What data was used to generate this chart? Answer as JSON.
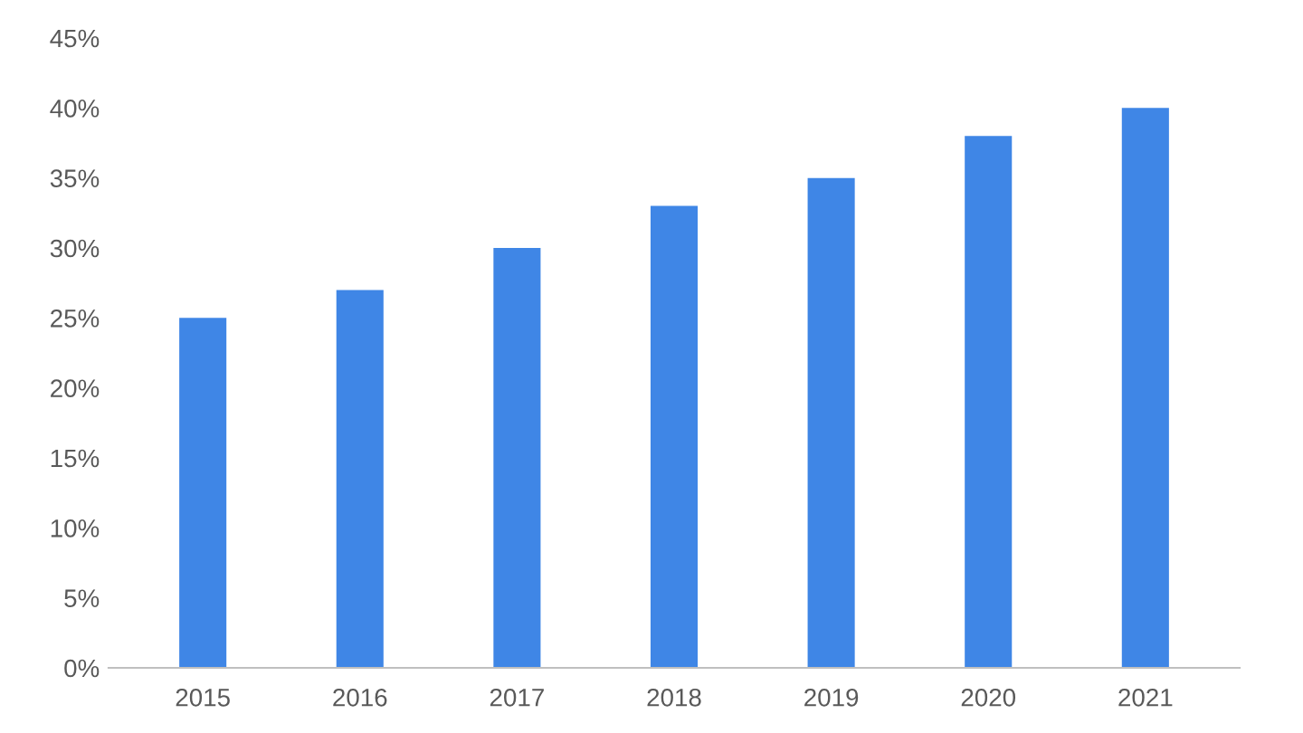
{
  "chart_data": {
    "type": "bar",
    "categories": [
      "2015",
      "2016",
      "2017",
      "2018",
      "2019",
      "2020",
      "2021"
    ],
    "values": [
      25,
      27,
      30,
      33,
      35,
      38,
      40
    ],
    "color": "#3f86e6",
    "ylim": [
      0,
      45
    ],
    "yticks": [
      {
        "value": 0,
        "label": "0%"
      },
      {
        "value": 5,
        "label": "5%"
      },
      {
        "value": 10,
        "label": "10%"
      },
      {
        "value": 15,
        "label": "15%"
      },
      {
        "value": 20,
        "label": "20%"
      },
      {
        "value": 25,
        "label": "25%"
      },
      {
        "value": 30,
        "label": "30%"
      },
      {
        "value": 35,
        "label": "35%"
      },
      {
        "value": 40,
        "label": "40%"
      },
      {
        "value": 45,
        "label": "45%"
      }
    ],
    "grid": false
  }
}
